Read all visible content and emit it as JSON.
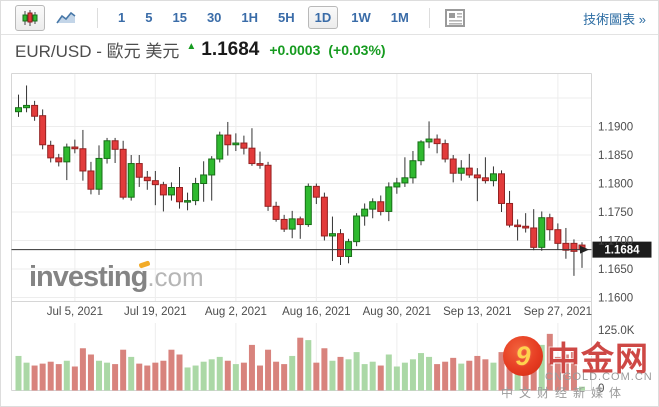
{
  "toolbar": {
    "chart_types": [
      {
        "name": "candlestick-chart",
        "selected": true
      },
      {
        "name": "line-chart",
        "selected": false
      }
    ],
    "timeframes": [
      "1",
      "5",
      "15",
      "30",
      "1H",
      "5H",
      "1D",
      "1W",
      "1M"
    ],
    "active_timeframe": "1D",
    "tech_chart_link": "技術圖表 »"
  },
  "header": {
    "instrument": "EUR/USD - 歐元 美元",
    "up_arrow": "▲",
    "price": "1.1684",
    "change": "+0.0003",
    "change_pct": "(+0.03%)"
  },
  "watermarks": {
    "investing": {
      "text": "investing",
      "suffix": ".com"
    },
    "cngold": {
      "swirl": "9",
      "title": "中金网",
      "domain": "CNGOLD.COM.CN",
      "tagline": "中文财经新媒体"
    }
  },
  "chart_data": {
    "type": "candlestick+volume",
    "title": "EUR/USD daily candlestick chart with volume",
    "last_price": 1.1684,
    "last_price_label": "1.1684",
    "ylim": [
      1.1593,
      1.1993
    ],
    "grid_prices": [
      1.195,
      1.19,
      1.185,
      1.18,
      1.175,
      1.17,
      1.165,
      1.16
    ],
    "y_tick_labels": [
      "1.1900",
      "1.1850",
      "1.1800",
      "1.1750",
      "1.1700",
      "1.1650",
      "1.1600"
    ],
    "y_tick_values": [
      1.19,
      1.185,
      1.18,
      1.175,
      1.17,
      1.165,
      1.16
    ],
    "x_ticks": [
      {
        "label": "Jul 5, 2021",
        "index": 7
      },
      {
        "label": "Jul 19, 2021",
        "index": 17
      },
      {
        "label": "Aug 2, 2021",
        "index": 27
      },
      {
        "label": "Aug 16, 2021",
        "index": 37
      },
      {
        "label": "Aug 30, 2021",
        "index": 47
      },
      {
        "label": "Sep 13, 2021",
        "index": 57
      },
      {
        "label": "Sep 27, 2021",
        "index": 67
      }
    ],
    "volume_ticks": [
      "125.0K",
      "0"
    ],
    "volume_max_k": 125,
    "colors": {
      "candle_up": "#2fb92f",
      "candle_up_border": "#176e17",
      "candle_down": "#e23b3b",
      "candle_down_border": "#952121",
      "wick": "#333333",
      "volume_up": "#abd8a6",
      "volume_down": "#d8837d",
      "grid": "#ededed",
      "frame": "#d6d6d6",
      "price_line": "#333333",
      "badge_bg": "#1c1c1c",
      "badge_text": "#ffffff",
      "axis_text": "#4d4d4d"
    },
    "candles_format": "[open, high, low, close]",
    "candles": [
      [
        1.1926,
        1.1956,
        1.1917,
        1.1933
      ],
      [
        1.1933,
        1.1972,
        1.1925,
        1.1937
      ],
      [
        1.1937,
        1.1945,
        1.191,
        1.1918
      ],
      [
        1.1919,
        1.193,
        1.186,
        1.1868
      ],
      [
        1.1867,
        1.1875,
        1.1837,
        1.1845
      ],
      [
        1.1845,
        1.1852,
        1.183,
        1.1838
      ],
      [
        1.1838,
        1.187,
        1.1806,
        1.1864
      ],
      [
        1.1864,
        1.1877,
        1.1853,
        1.1861
      ],
      [
        1.1861,
        1.1894,
        1.1805,
        1.1822
      ],
      [
        1.1822,
        1.1838,
        1.1781,
        1.179
      ],
      [
        1.179,
        1.1867,
        1.178,
        1.1844
      ],
      [
        1.1844,
        1.188,
        1.1835,
        1.1875
      ],
      [
        1.1875,
        1.188,
        1.1836,
        1.186
      ],
      [
        1.186,
        1.1875,
        1.1772,
        1.1776
      ],
      [
        1.1776,
        1.185,
        1.177,
        1.1835
      ],
      [
        1.1835,
        1.185,
        1.1794,
        1.1811
      ],
      [
        1.1811,
        1.1822,
        1.1789,
        1.1805
      ],
      [
        1.1805,
        1.1822,
        1.1762,
        1.1798
      ],
      [
        1.1798,
        1.1803,
        1.1751,
        1.178
      ],
      [
        1.178,
        1.1802,
        1.177,
        1.1793
      ],
      [
        1.1793,
        1.1829,
        1.1756,
        1.1768
      ],
      [
        1.1768,
        1.1784,
        1.1753,
        1.177
      ],
      [
        1.177,
        1.181,
        1.1762,
        1.18
      ],
      [
        1.18,
        1.1839,
        1.1768,
        1.1815
      ],
      [
        1.1815,
        1.1848,
        1.177,
        1.1843
      ],
      [
        1.1843,
        1.1891,
        1.1837,
        1.1885
      ],
      [
        1.1885,
        1.1908,
        1.1849,
        1.1868
      ],
      [
        1.1868,
        1.1888,
        1.1857,
        1.1871
      ],
      [
        1.1871,
        1.1884,
        1.1851,
        1.1862
      ],
      [
        1.1862,
        1.1897,
        1.1831,
        1.1835
      ],
      [
        1.1835,
        1.1856,
        1.1826,
        1.1832
      ],
      [
        1.1832,
        1.1838,
        1.1752,
        1.176
      ],
      [
        1.176,
        1.1768,
        1.1733,
        1.1737
      ],
      [
        1.1737,
        1.1745,
        1.1715,
        1.172
      ],
      [
        1.172,
        1.1752,
        1.1704,
        1.1738
      ],
      [
        1.1738,
        1.1742,
        1.1703,
        1.1728
      ],
      [
        1.1728,
        1.18,
        1.1724,
        1.1795
      ],
      [
        1.1795,
        1.18,
        1.1764,
        1.1776
      ],
      [
        1.1776,
        1.1784,
        1.17,
        1.1708
      ],
      [
        1.1708,
        1.1742,
        1.1664,
        1.1712
      ],
      [
        1.1712,
        1.172,
        1.1657,
        1.1672
      ],
      [
        1.1672,
        1.1703,
        1.166,
        1.1698
      ],
      [
        1.1698,
        1.1748,
        1.169,
        1.1743
      ],
      [
        1.1743,
        1.1765,
        1.1726,
        1.1755
      ],
      [
        1.1755,
        1.1774,
        1.1739,
        1.1768
      ],
      [
        1.1768,
        1.1779,
        1.1744,
        1.1751
      ],
      [
        1.1751,
        1.1802,
        1.1734,
        1.1794
      ],
      [
        1.1794,
        1.181,
        1.1782,
        1.1801
      ],
      [
        1.1801,
        1.1846,
        1.1794,
        1.181
      ],
      [
        1.181,
        1.1857,
        1.18,
        1.184
      ],
      [
        1.184,
        1.1876,
        1.1832,
        1.1873
      ],
      [
        1.1873,
        1.1909,
        1.1862,
        1.1878
      ],
      [
        1.1878,
        1.1886,
        1.1853,
        1.187
      ],
      [
        1.187,
        1.1877,
        1.1837,
        1.1843
      ],
      [
        1.1843,
        1.185,
        1.1802,
        1.1818
      ],
      [
        1.1818,
        1.1841,
        1.1805,
        1.1827
      ],
      [
        1.1827,
        1.1852,
        1.181,
        1.1815
      ],
      [
        1.1815,
        1.1827,
        1.1769,
        1.181
      ],
      [
        1.181,
        1.1846,
        1.18,
        1.1805
      ],
      [
        1.1805,
        1.183,
        1.1795,
        1.1817
      ],
      [
        1.1817,
        1.1823,
        1.175,
        1.1765
      ],
      [
        1.1765,
        1.1787,
        1.1723,
        1.1727
      ],
      [
        1.1727,
        1.1737,
        1.17,
        1.1725
      ],
      [
        1.1725,
        1.1748,
        1.1714,
        1.1722
      ],
      [
        1.1722,
        1.1755,
        1.1683,
        1.1688
      ],
      [
        1.1688,
        1.1751,
        1.1682,
        1.174
      ],
      [
        1.174,
        1.1747,
        1.17,
        1.1719
      ],
      [
        1.1719,
        1.173,
        1.1684,
        1.1695
      ],
      [
        1.1695,
        1.1722,
        1.1668,
        1.1683
      ],
      [
        1.1695,
        1.1702,
        1.1638,
        1.1681
      ],
      [
        1.1692,
        1.1697,
        1.1652,
        1.1684
      ]
    ],
    "volumes_format": "[thousands, up_or_down]",
    "volumes": [
      [
        72,
        "g"
      ],
      [
        58,
        "g"
      ],
      [
        52,
        "r"
      ],
      [
        56,
        "r"
      ],
      [
        60,
        "r"
      ],
      [
        55,
        "r"
      ],
      [
        62,
        "g"
      ],
      [
        50,
        "r"
      ],
      [
        88,
        "r"
      ],
      [
        75,
        "r"
      ],
      [
        62,
        "g"
      ],
      [
        58,
        "g"
      ],
      [
        55,
        "r"
      ],
      [
        85,
        "r"
      ],
      [
        70,
        "g"
      ],
      [
        56,
        "r"
      ],
      [
        52,
        "r"
      ],
      [
        58,
        "r"
      ],
      [
        62,
        "r"
      ],
      [
        85,
        "r"
      ],
      [
        75,
        "r"
      ],
      [
        48,
        "g"
      ],
      [
        52,
        "g"
      ],
      [
        60,
        "g"
      ],
      [
        65,
        "g"
      ],
      [
        70,
        "g"
      ],
      [
        62,
        "r"
      ],
      [
        55,
        "g"
      ],
      [
        58,
        "r"
      ],
      [
        95,
        "r"
      ],
      [
        52,
        "r"
      ],
      [
        85,
        "r"
      ],
      [
        60,
        "r"
      ],
      [
        55,
        "r"
      ],
      [
        72,
        "g"
      ],
      [
        110,
        "r"
      ],
      [
        105,
        "g"
      ],
      [
        58,
        "r"
      ],
      [
        88,
        "r"
      ],
      [
        62,
        "g"
      ],
      [
        70,
        "r"
      ],
      [
        65,
        "g"
      ],
      [
        80,
        "g"
      ],
      [
        55,
        "g"
      ],
      [
        60,
        "g"
      ],
      [
        52,
        "r"
      ],
      [
        75,
        "g"
      ],
      [
        50,
        "g"
      ],
      [
        58,
        "g"
      ],
      [
        65,
        "g"
      ],
      [
        78,
        "g"
      ],
      [
        70,
        "g"
      ],
      [
        55,
        "r"
      ],
      [
        60,
        "r"
      ],
      [
        68,
        "r"
      ],
      [
        56,
        "g"
      ],
      [
        62,
        "r"
      ],
      [
        72,
        "r"
      ],
      [
        65,
        "r"
      ],
      [
        58,
        "g"
      ],
      [
        80,
        "r"
      ],
      [
        85,
        "r"
      ],
      [
        60,
        "g"
      ],
      [
        55,
        "r"
      ],
      [
        90,
        "r"
      ],
      [
        95,
        "g"
      ],
      [
        118,
        "r"
      ],
      [
        70,
        "r"
      ],
      [
        75,
        "r"
      ],
      [
        88,
        "r"
      ],
      [
        8,
        "g"
      ]
    ]
  }
}
